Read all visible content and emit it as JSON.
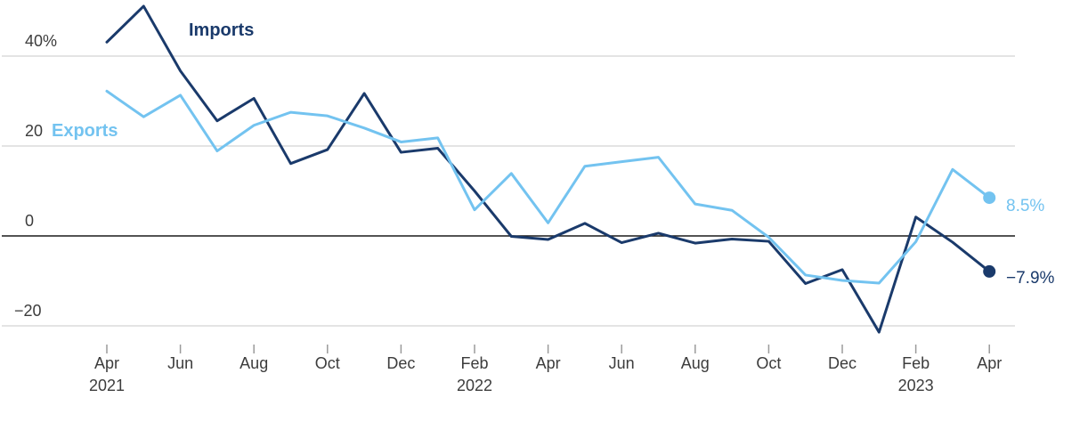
{
  "chart_data": {
    "type": "line",
    "title": "",
    "unit": "%",
    "months": [
      "Apr 2021",
      "May 2021",
      "Jun 2021",
      "Jul 2021",
      "Aug 2021",
      "Sep 2021",
      "Oct 2021",
      "Nov 2021",
      "Dec 2021",
      "Jan 2022",
      "Feb 2022",
      "Mar 2022",
      "Apr 2022",
      "May 2022",
      "Jun 2022",
      "Jul 2022",
      "Aug 2022",
      "Sep 2022",
      "Oct 2022",
      "Nov 2022",
      "Dec 2022",
      "Jan 2023",
      "Feb 2023",
      "Mar 2023",
      "Apr 2023"
    ],
    "series": [
      {
        "name": "Imports",
        "color": "#1a3a6b",
        "end_label": "−7.9%",
        "values": [
          43.1,
          51.1,
          36.7,
          25.6,
          30.6,
          16.1,
          19.2,
          31.7,
          18.6,
          19.5,
          10.0,
          -0.1,
          -0.8,
          2.8,
          -1.5,
          0.6,
          -1.6,
          -0.7,
          -1.2,
          -10.6,
          -7.5,
          -21.4,
          4.2,
          -1.4,
          -7.9
        ]
      },
      {
        "name": "Exports",
        "color": "#73c3f0",
        "end_label": "8.5%",
        "values": [
          32.2,
          26.5,
          31.3,
          18.9,
          24.6,
          27.5,
          26.7,
          24.0,
          20.9,
          21.8,
          5.8,
          13.9,
          2.9,
          15.5,
          16.5,
          17.5,
          7.1,
          5.7,
          -0.3,
          -8.7,
          -9.9,
          -10.5,
          -1.3,
          14.8,
          8.5
        ]
      }
    ],
    "y_axis": {
      "range": [
        -27,
        52
      ],
      "ticks": [
        {
          "value": 40,
          "label": "40%"
        },
        {
          "value": 20,
          "label": "20"
        },
        {
          "value": 0,
          "label": "0"
        },
        {
          "value": -20,
          "label": "−20"
        }
      ]
    },
    "x_axis": {
      "tick_labels": [
        "Apr",
        "Jun",
        "Aug",
        "Oct",
        "Dec",
        "Feb",
        "Apr",
        "Jun",
        "Aug",
        "Oct",
        "Dec",
        "Feb",
        "Apr"
      ],
      "year_labels": [
        {
          "tick_index": 0,
          "label": "2021"
        },
        {
          "tick_index": 5,
          "label": "2022"
        },
        {
          "tick_index": 11,
          "label": "2023"
        }
      ]
    },
    "legend_position": "inline-on-chart",
    "grid": true,
    "style": {
      "grid_color": "#c9c9c9",
      "zero_line_color": "#1a1a1a",
      "tick_color": "#9a9a9a",
      "label_color": "#3c3c3c"
    }
  }
}
